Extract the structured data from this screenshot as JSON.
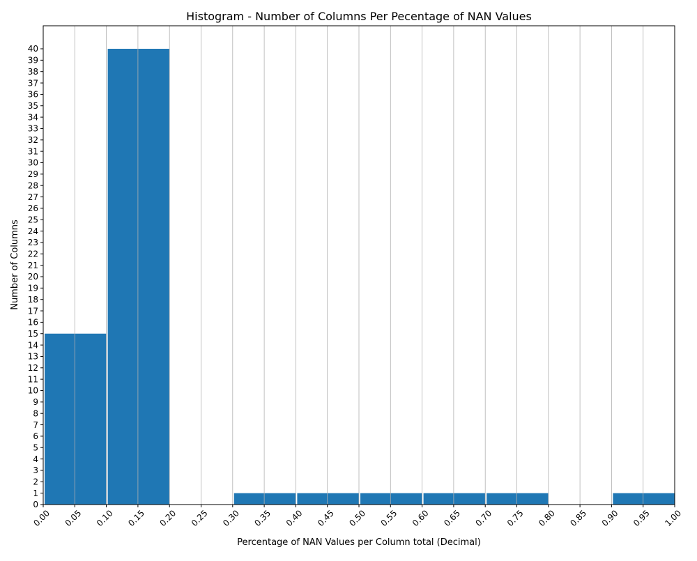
{
  "chart_data": {
    "type": "bar",
    "subtype": "histogram",
    "title": "Histogram - Number of Columns Per Pecentage of NAN Values",
    "xlabel": "Percentage of NAN Values per Column total (Decimal)",
    "ylabel": "Number of Columns",
    "xlim": [
      0.0,
      1.0
    ],
    "ylim": [
      0,
      40
    ],
    "grid": "vertical",
    "bar_color": "#1f77b4",
    "grid_color": "#b0b0b0",
    "x_ticks": [
      "0.00",
      "0.05",
      "0.10",
      "0.15",
      "0.20",
      "0.25",
      "0.30",
      "0.35",
      "0.40",
      "0.45",
      "0.50",
      "0.55",
      "0.60",
      "0.65",
      "0.70",
      "0.75",
      "0.80",
      "0.85",
      "0.90",
      "0.95",
      "1.00"
    ],
    "y_ticks": [
      "0",
      "1",
      "2",
      "3",
      "4",
      "5",
      "6",
      "7",
      "8",
      "9",
      "10",
      "11",
      "12",
      "13",
      "14",
      "15",
      "16",
      "17",
      "18",
      "19",
      "20",
      "21",
      "22",
      "23",
      "24",
      "25",
      "26",
      "27",
      "28",
      "29",
      "30",
      "31",
      "32",
      "33",
      "34",
      "35",
      "36",
      "37",
      "38",
      "39",
      "40"
    ],
    "bins": [
      {
        "x0": 0.0,
        "x1": 0.1,
        "count": 15
      },
      {
        "x0": 0.1,
        "x1": 0.2,
        "count": 40
      },
      {
        "x0": 0.2,
        "x1": 0.3,
        "count": 0
      },
      {
        "x0": 0.3,
        "x1": 0.4,
        "count": 1
      },
      {
        "x0": 0.4,
        "x1": 0.5,
        "count": 1
      },
      {
        "x0": 0.5,
        "x1": 0.6,
        "count": 1
      },
      {
        "x0": 0.6,
        "x1": 0.7,
        "count": 1
      },
      {
        "x0": 0.7,
        "x1": 0.8,
        "count": 1
      },
      {
        "x0": 0.8,
        "x1": 0.9,
        "count": 0
      },
      {
        "x0": 0.9,
        "x1": 1.0,
        "count": 1
      }
    ]
  }
}
